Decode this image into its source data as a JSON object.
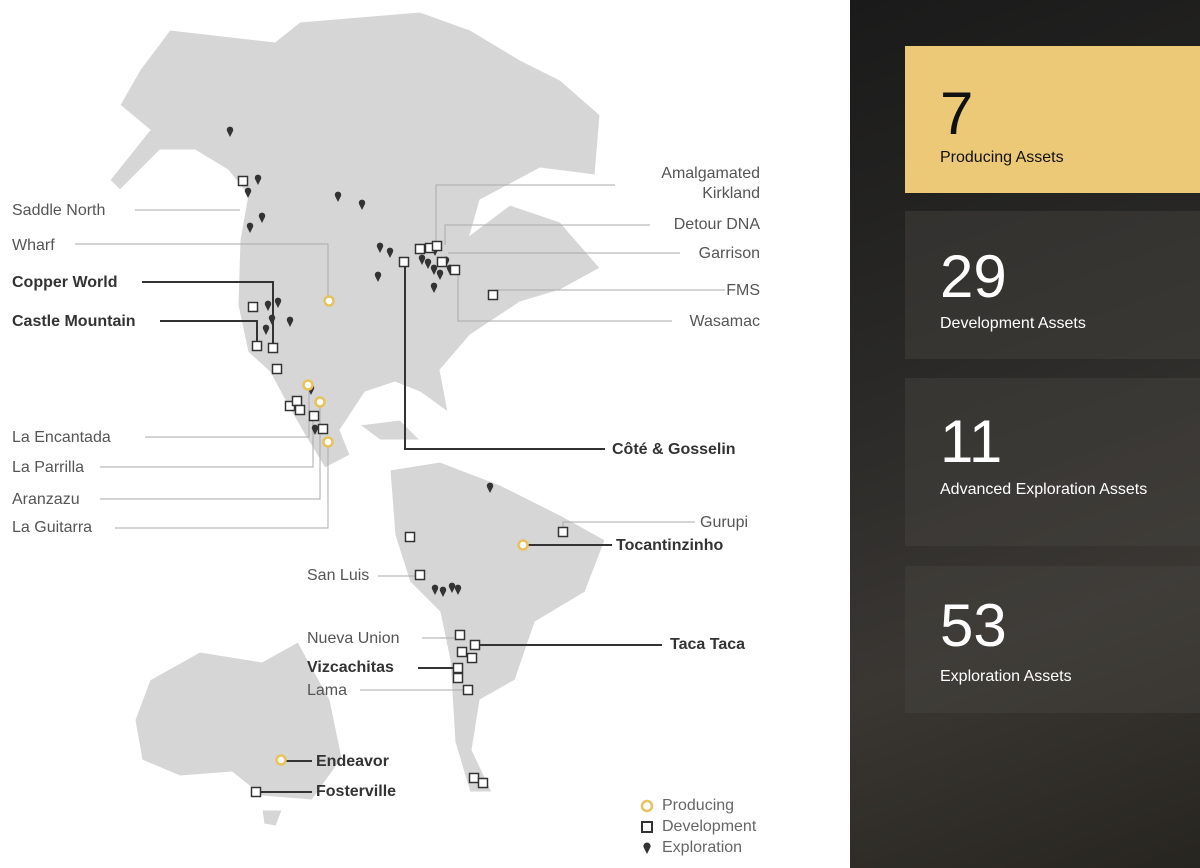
{
  "stats": [
    {
      "value": "7",
      "label": "Producing Assets",
      "highlight": true
    },
    {
      "value": "29",
      "label": "Development Assets"
    },
    {
      "value": "11",
      "label": "Advanced Exploration Assets"
    },
    {
      "value": "53",
      "label": "Exploration Assets"
    }
  ],
  "assets": {
    "saddle_north": "Saddle North",
    "wharf": "Wharf",
    "copper_world": "Copper World",
    "castle_mountain": "Castle Mountain",
    "la_encantada": "La Encantada",
    "la_parrilla": "La Parrilla",
    "aranzazu": "Aranzazu",
    "la_guitarra": "La Guitarra",
    "amalgamated_kirkland": "Amalgamated Kirkland",
    "detour_dna": "Detour DNA",
    "garrison": "Garrison",
    "fms": "FMS",
    "wasamac": "Wasamac",
    "cote_gosselin": "Côté & Gosselin",
    "gurupi": "Gurupi",
    "tocantinzinho": "Tocantinzinho",
    "san_luis": "San Luis",
    "nueva_union": "Nueva Union",
    "vizcachitas": "Vizcachitas",
    "lama": "Lama",
    "taca_taca": "Taca Taca",
    "endeavor": "Endeavor",
    "fosterville": "Fosterville"
  },
  "legend": {
    "producing": "Producing",
    "development": "Development",
    "exploration": "Exploration"
  },
  "colors": {
    "land": "#d6d6d6",
    "producing": "#e8c25e",
    "gold_card": "#ecc976",
    "marker": "#333333"
  },
  "icons": {
    "producing": "circle-outline",
    "development": "square-outline",
    "exploration": "map-pin"
  }
}
